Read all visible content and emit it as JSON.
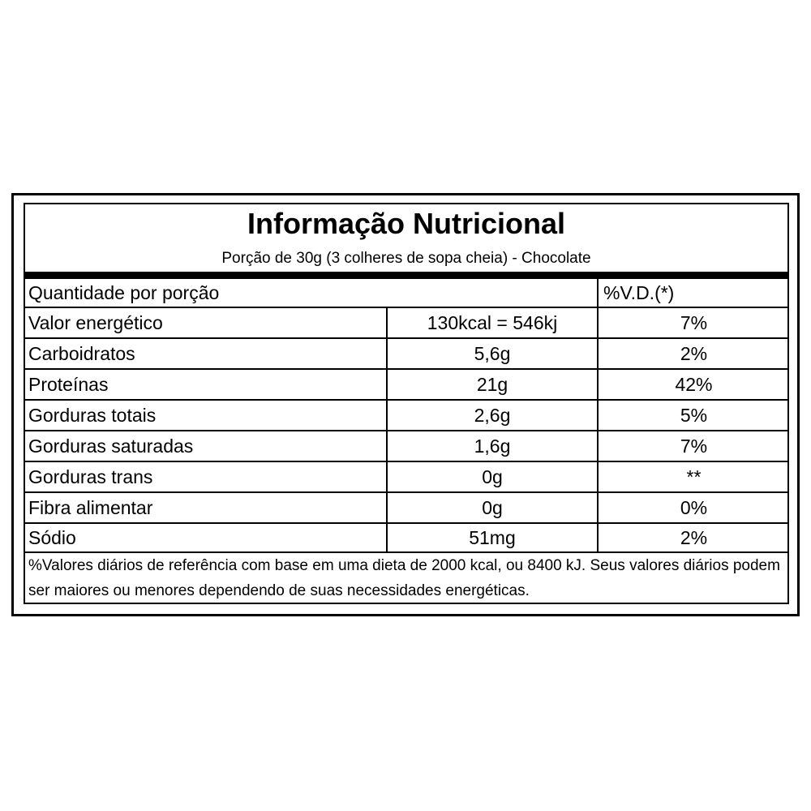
{
  "label": {
    "title": "Informação Nutricional",
    "subtitle": "Porção de 30g (3 colheres de sopa cheia) - Chocolate",
    "header": {
      "quantity_label": "Quantidade por porção",
      "vd_label": "%V.D.(*)"
    },
    "rows": [
      {
        "name": "Valor energético",
        "amount": "130kcal = 546kj",
        "vd": "7%"
      },
      {
        "name": "Carboidratos",
        "amount": "5,6g",
        "vd": "2%"
      },
      {
        "name": "Proteínas",
        "amount": "21g",
        "vd": "42%"
      },
      {
        "name": "Gorduras totais",
        "amount": "2,6g",
        "vd": "5%"
      },
      {
        "name": "Gorduras saturadas",
        "amount": "1,6g",
        "vd": "7%"
      },
      {
        "name": "Gorduras trans",
        "amount": "0g",
        "vd": "**"
      },
      {
        "name": "Fibra alimentar",
        "amount": "0g",
        "vd": "0%"
      },
      {
        "name": "Sódio",
        "amount": "51mg",
        "vd": "2%"
      }
    ],
    "footnote": "%Valores diários de referência com base em uma dieta de 2000 kcal, ou 8400 kJ. Seus valores diários podem ser maiores ou menores dependendo de suas necessidades energéticas."
  }
}
